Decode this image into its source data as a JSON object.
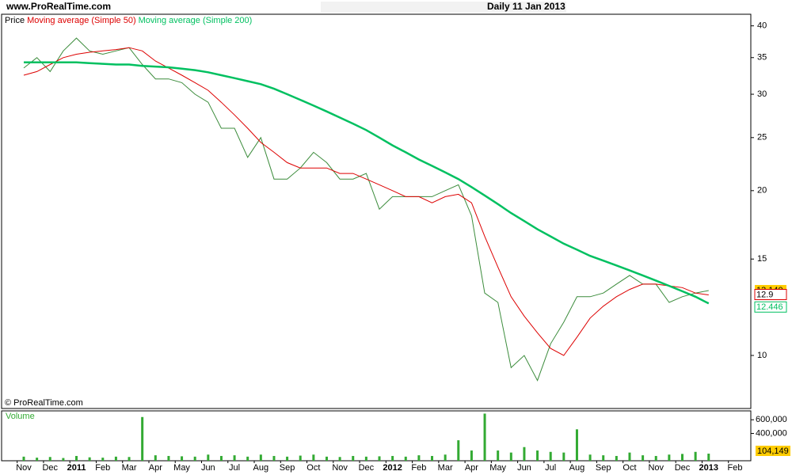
{
  "chart_data": [
    {
      "type": "line",
      "source": "www.ProRealTime.com",
      "title": "Daily  11 Jan 2013",
      "watermark": "© ProRealTime.com",
      "log_scale": true,
      "ylim": [
        8,
        42
      ],
      "yticks": [
        10,
        15,
        20,
        25,
        30,
        35,
        40
      ],
      "series": [
        {
          "name": "Price",
          "color": "#3c8c3c",
          "values": [
            33.5,
            35,
            33,
            36,
            38,
            36,
            35.5,
            36,
            36.5,
            34,
            32,
            32,
            31.5,
            30,
            29,
            26,
            26,
            23,
            25,
            21,
            21,
            22,
            23.5,
            22.5,
            21,
            21,
            21.5,
            18.5,
            19.5,
            19.5,
            19.5,
            19.5,
            20,
            20.5,
            18,
            13,
            12.5,
            9.5,
            10,
            9,
            10.5,
            11.5,
            12.8,
            12.8,
            13,
            13.5,
            14,
            13.5,
            13.5,
            12.5,
            12.8,
            13,
            13.14,
            null,
            null
          ],
          "value_labels": [
            null,
            null,
            null,
            null,
            null,
            null,
            null,
            null,
            null,
            null,
            null,
            null,
            null,
            null,
            null,
            null,
            null,
            null,
            null,
            null,
            null,
            null,
            null,
            null,
            null,
            null,
            null,
            null,
            null,
            null,
            null,
            null,
            null,
            null,
            null,
            null,
            null,
            null,
            null,
            null,
            null,
            null,
            null,
            null,
            null,
            null,
            null,
            null,
            null,
            null,
            null,
            null,
            "13.140",
            null,
            null
          ]
        },
        {
          "name": "Moving average (Simple 50)",
          "color": "#dd0000",
          "values": [
            32.5,
            33,
            34,
            35,
            35.5,
            35.8,
            36,
            36.2,
            36.5,
            36,
            34.5,
            33.5,
            32.5,
            31.5,
            30.5,
            29,
            27.5,
            26,
            24.5,
            23.5,
            22.5,
            22,
            22,
            22,
            21.5,
            21.5,
            21,
            20.5,
            20,
            19.5,
            19.5,
            19,
            19.5,
            19.7,
            19,
            16.5,
            14.5,
            12.8,
            11.8,
            11,
            10.3,
            10,
            10.8,
            11.7,
            12.3,
            12.8,
            13.2,
            13.5,
            13.5,
            13.4,
            13.3,
            13,
            12.9,
            null,
            null
          ]
        },
        {
          "name": "Moving average (Simple 200)",
          "color": "#00c060",
          "values": [
            34.3,
            34.3,
            34.3,
            34.3,
            34.3,
            34.2,
            34.1,
            34,
            34,
            33.8,
            33.7,
            33.6,
            33.4,
            33.2,
            32.9,
            32.5,
            32.1,
            31.7,
            31.3,
            30.7,
            30,
            29.3,
            28.6,
            27.9,
            27.2,
            26.5,
            25.8,
            25,
            24.2,
            23.5,
            22.8,
            22.2,
            21.6,
            21,
            20.3,
            19.6,
            18.9,
            18.2,
            17.6,
            17,
            16.5,
            16,
            15.6,
            15.2,
            14.9,
            14.6,
            14.3,
            14,
            13.7,
            13.4,
            13.1,
            12.8,
            12.446,
            null,
            null
          ]
        }
      ]
    },
    {
      "type": "bar",
      "title": "Volume",
      "color": "#33aa33",
      "categories": [
        "Nov",
        null,
        "Dec",
        null,
        "2011",
        null,
        "Feb",
        null,
        "Mar",
        null,
        "Apr",
        null,
        "May",
        null,
        "Jun",
        null,
        "Jul",
        null,
        "Aug",
        null,
        "Sep",
        null,
        "Oct",
        null,
        "Nov",
        null,
        "Dec",
        null,
        "2012",
        null,
        "Feb",
        null,
        "Mar",
        null,
        "Apr",
        null,
        "May",
        null,
        "Jun",
        null,
        "Jul",
        null,
        "Aug",
        null,
        "Sep",
        null,
        "Oct",
        null,
        "Nov",
        null,
        "Dec",
        null,
        "2013",
        null,
        "Feb"
      ],
      "values": [
        60000,
        45000,
        55000,
        40000,
        70000,
        50000,
        45000,
        60000,
        55000,
        640000,
        80000,
        70000,
        65000,
        60000,
        90000,
        70000,
        80000,
        60000,
        90000,
        70000,
        60000,
        75000,
        90000,
        60000,
        55000,
        70000,
        60000,
        65000,
        70000,
        60000,
        80000,
        70000,
        90000,
        300000,
        150000,
        690000,
        150000,
        120000,
        200000,
        150000,
        130000,
        120000,
        460000,
        90000,
        80000,
        70000,
        120000,
        80000,
        70000,
        90000,
        100000,
        130000,
        104149,
        null,
        null
      ],
      "value_labels": [
        null,
        null,
        null,
        null,
        null,
        null,
        null,
        null,
        null,
        null,
        null,
        null,
        null,
        null,
        null,
        null,
        null,
        null,
        null,
        null,
        null,
        null,
        null,
        null,
        null,
        null,
        null,
        null,
        null,
        null,
        null,
        null,
        null,
        null,
        null,
        null,
        null,
        null,
        null,
        null,
        null,
        null,
        null,
        null,
        null,
        null,
        null,
        null,
        null,
        null,
        null,
        null,
        "104,149",
        null,
        null
      ],
      "ylim": [
        0,
        730000
      ],
      "yticks": [
        {
          "value": 600000,
          "label": "600,000"
        },
        {
          "value": 400000,
          "label": "400,000"
        }
      ]
    }
  ]
}
